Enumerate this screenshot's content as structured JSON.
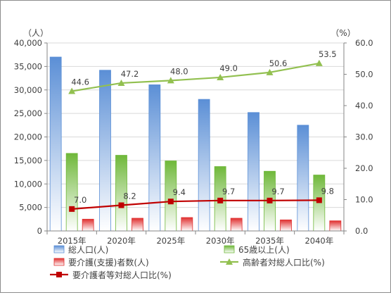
{
  "chart_data": {
    "type": "bar",
    "categories": [
      "2015年",
      "2020年",
      "2025年",
      "2030年",
      "2035年",
      "2040年"
    ],
    "y_left": {
      "unit_label": "（人）",
      "ylim": [
        0,
        40000
      ],
      "ticks": [
        "0",
        "5,000",
        "10,000",
        "15,000",
        "20,000",
        "25,000",
        "30,000",
        "35,000",
        "40,000"
      ]
    },
    "y_right": {
      "unit_label": "（%）",
      "ylim": [
        0,
        60
      ],
      "ticks": [
        "0.0",
        "10.0",
        "20.0",
        "30.0",
        "40.0",
        "50.0",
        "60.0"
      ]
    },
    "grid": true,
    "legend_position": "bottom",
    "series": [
      {
        "name": "総人口(人)",
        "kind": "bar",
        "axis": "left",
        "color": "#5b8fd6",
        "values": [
          37000,
          34200,
          31100,
          28000,
          25200,
          22500
        ]
      },
      {
        "name": "65歳以上(人)",
        "kind": "bar",
        "axis": "left",
        "color": "#6fb83a",
        "values": [
          16500,
          16100,
          14900,
          13700,
          12700,
          11900
        ]
      },
      {
        "name": "要介護(支援)者数(人)",
        "kind": "bar",
        "axis": "left",
        "color": "#e03030",
        "values": [
          2500,
          2700,
          2850,
          2700,
          2350,
          2150
        ]
      },
      {
        "name": "高齢者対総人口比(%)",
        "kind": "line",
        "axis": "right",
        "color": "#92c050",
        "marker": "triangle",
        "values": [
          44.6,
          47.2,
          48.0,
          49.0,
          50.6,
          53.5
        ],
        "labels": [
          "44.6",
          "47.2",
          "48.0",
          "49.0",
          "50.6",
          "53.5"
        ]
      },
      {
        "name": "要介護者等対総人口比(%)",
        "kind": "line",
        "axis": "right",
        "color": "#c00000",
        "marker": "square",
        "values": [
          7.0,
          8.2,
          9.4,
          9.7,
          9.7,
          9.8
        ],
        "labels": [
          "7.0",
          "8.2",
          "9.4",
          "9.7",
          "9.7",
          "9.8"
        ]
      }
    ]
  }
}
